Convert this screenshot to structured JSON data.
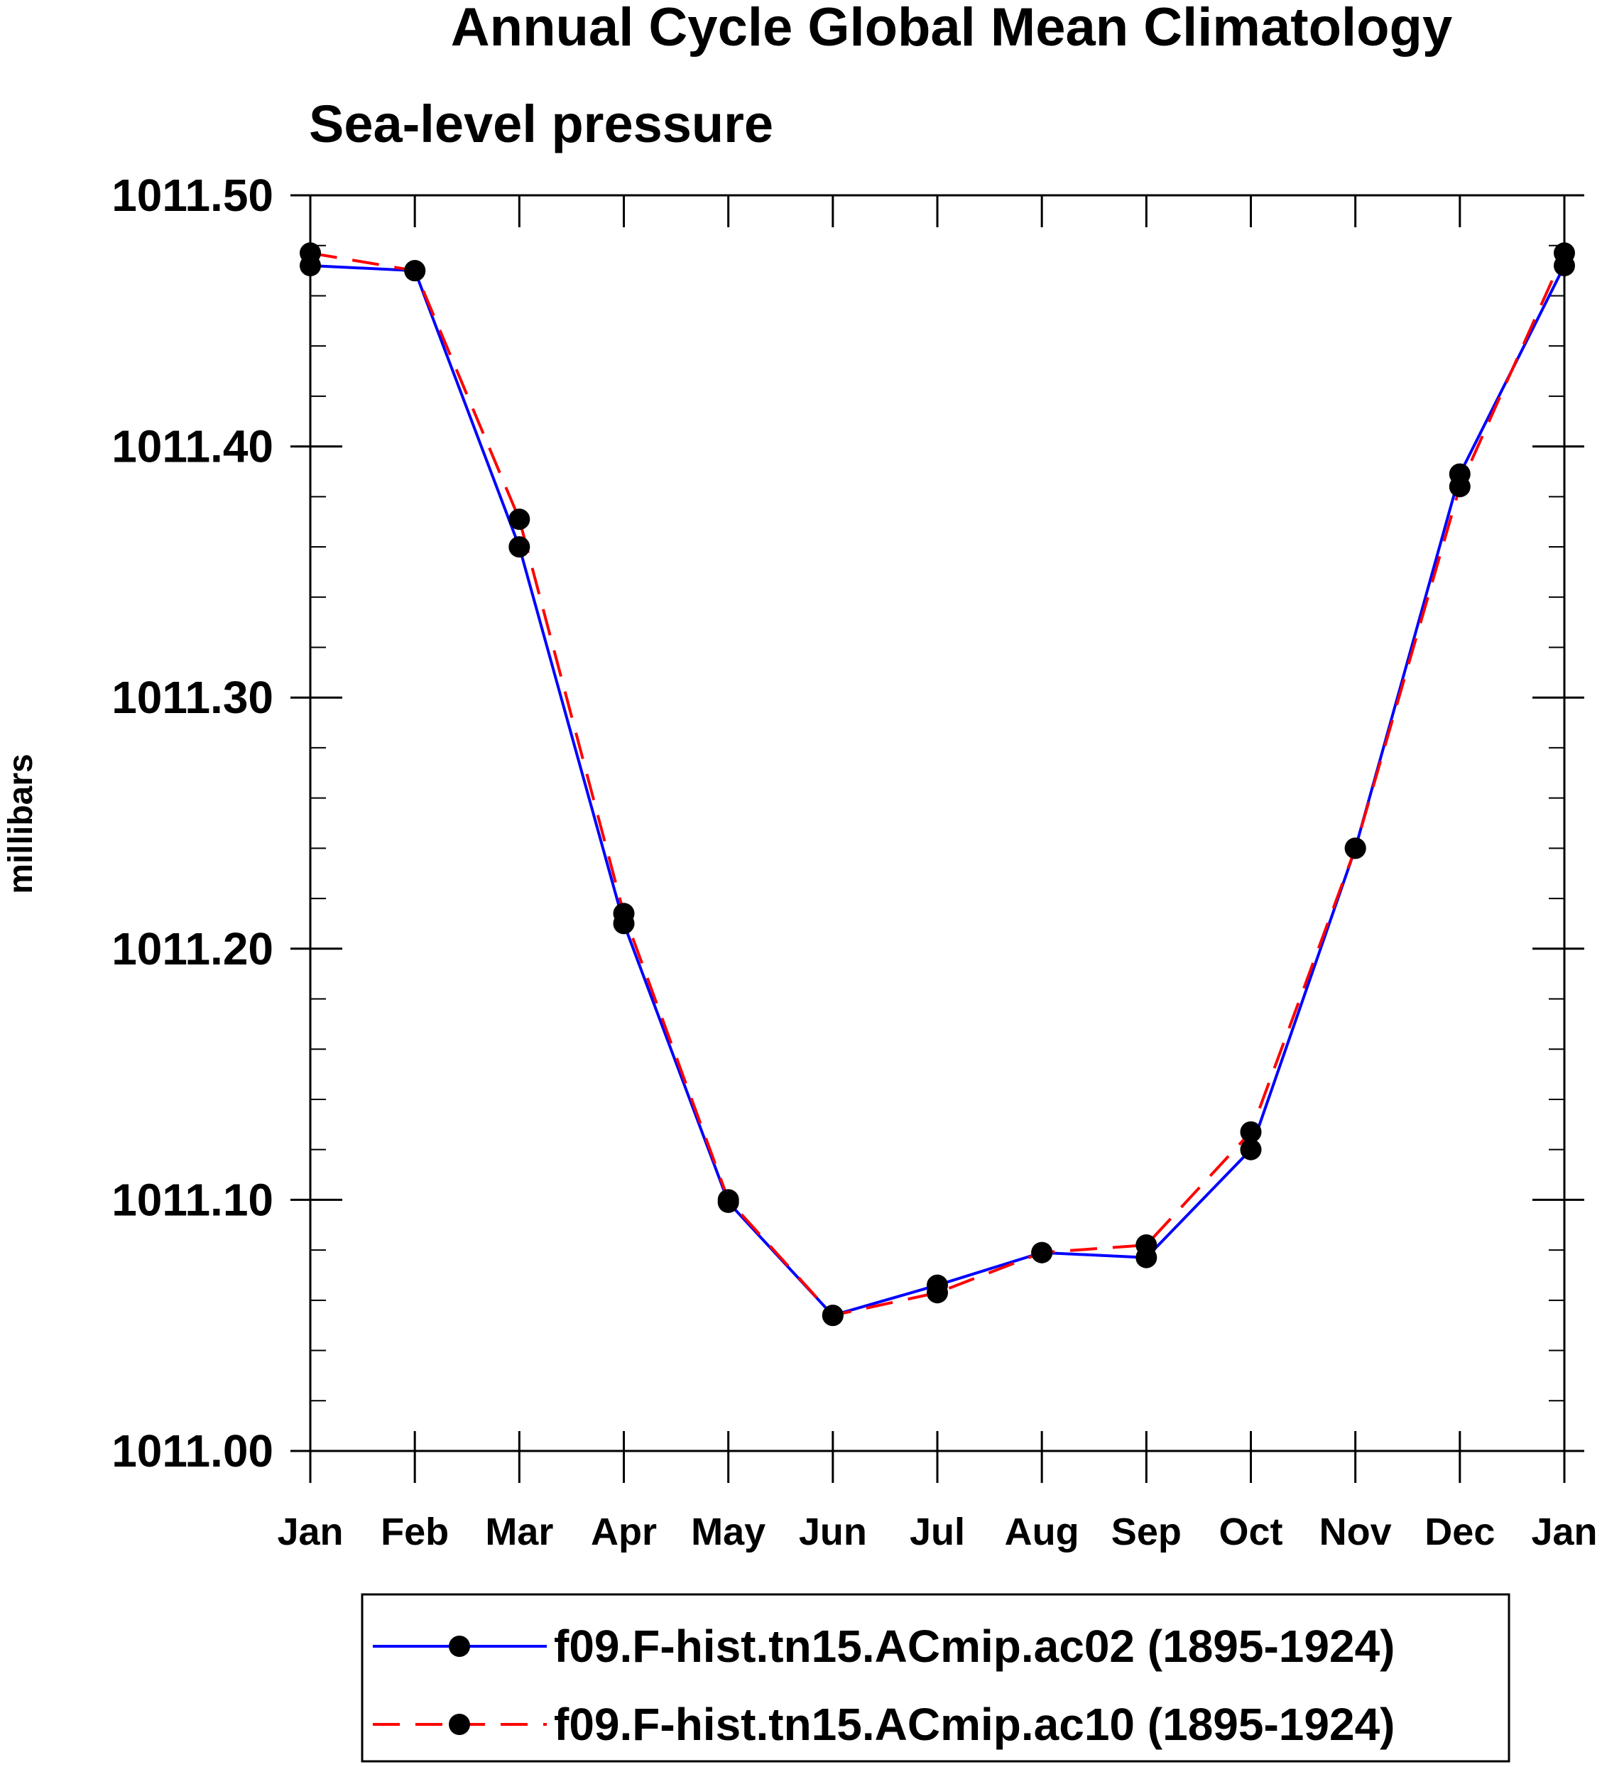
{
  "chart_data": {
    "type": "line",
    "title": "Annual Cycle Global Mean Climatology",
    "subtitle": "Sea-level pressure",
    "ylabel": "millibars",
    "xlabel": "",
    "categories": [
      "Jan",
      "Feb",
      "Mar",
      "Apr",
      "May",
      "Jun",
      "Jul",
      "Aug",
      "Sep",
      "Oct",
      "Nov",
      "Dec",
      "Jan"
    ],
    "ylim": [
      1011.0,
      1011.5
    ],
    "yticks": [
      1011.0,
      1011.1,
      1011.2,
      1011.3,
      1011.4,
      1011.5
    ],
    "ytick_labels": [
      "1011.00",
      "1011.10",
      "1011.20",
      "1011.30",
      "1011.40",
      "1011.50"
    ],
    "y_minor_step": 0.02,
    "grid": false,
    "legend_position": "bottom-center",
    "series": [
      {
        "name": "f09.F-hist.tn15.ACmip.ac02 (1895-1924)",
        "color": "#0000ff",
        "style": "solid",
        "marker": "circle",
        "values": [
          1011.472,
          1011.47,
          1011.36,
          1011.21,
          1011.099,
          1011.054,
          1011.066,
          1011.079,
          1011.077,
          1011.12,
          1011.24,
          1011.389,
          1011.472
        ]
      },
      {
        "name": "f09.F-hist.tn15.ACmip.ac10 (1895-1924)",
        "color": "#ff0000",
        "style": "dashed",
        "marker": "circle",
        "values": [
          1011.477,
          1011.47,
          1011.371,
          1011.214,
          1011.1,
          1011.054,
          1011.063,
          1011.079,
          1011.082,
          1011.127,
          1011.24,
          1011.384,
          1011.477
        ]
      }
    ]
  }
}
